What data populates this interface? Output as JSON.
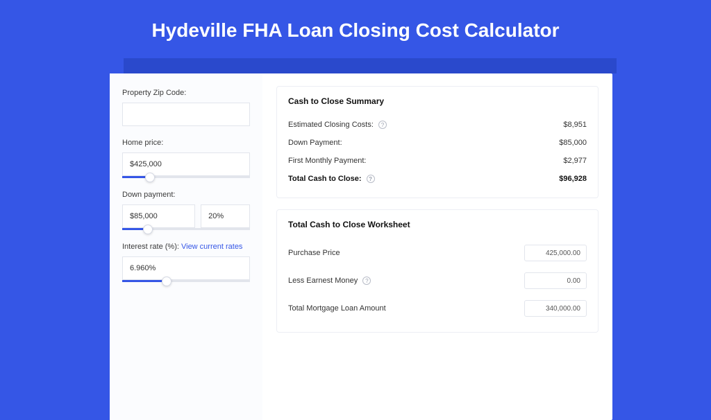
{
  "title": "Hydeville FHA Loan Closing Cost Calculator",
  "colors": {
    "page_bg": "#3556e6",
    "shadow_panel": "#2a49cc",
    "card_bg": "#ffffff",
    "left_bg": "#fbfcfe",
    "border": "#e2e5ec",
    "link": "#3556e6"
  },
  "form": {
    "zip": {
      "label": "Property Zip Code:",
      "value": ""
    },
    "home_price": {
      "label": "Home price:",
      "value": "$425,000",
      "slider_pct": 22
    },
    "down_payment": {
      "label": "Down payment:",
      "value": "$85,000",
      "pct": "20%",
      "slider_pct": 20
    },
    "interest": {
      "label": "Interest rate (%):",
      "link": "View current rates",
      "value": "6.960%",
      "slider_pct": 35
    }
  },
  "summary": {
    "title": "Cash to Close Summary",
    "rows": [
      {
        "label": "Estimated Closing Costs:",
        "help": true,
        "value": "$8,951"
      },
      {
        "label": "Down Payment:",
        "help": false,
        "value": "$85,000"
      },
      {
        "label": "First Monthly Payment:",
        "help": false,
        "value": "$2,977"
      }
    ],
    "total": {
      "label": "Total Cash to Close:",
      "help": true,
      "value": "$96,928"
    }
  },
  "worksheet": {
    "title": "Total Cash to Close Worksheet",
    "rows": [
      {
        "label": "Purchase Price",
        "help": false,
        "value": "425,000.00"
      },
      {
        "label": "Less Earnest Money",
        "help": true,
        "value": "0.00"
      },
      {
        "label": "Total Mortgage Loan Amount",
        "help": false,
        "value": "340,000.00"
      }
    ]
  }
}
